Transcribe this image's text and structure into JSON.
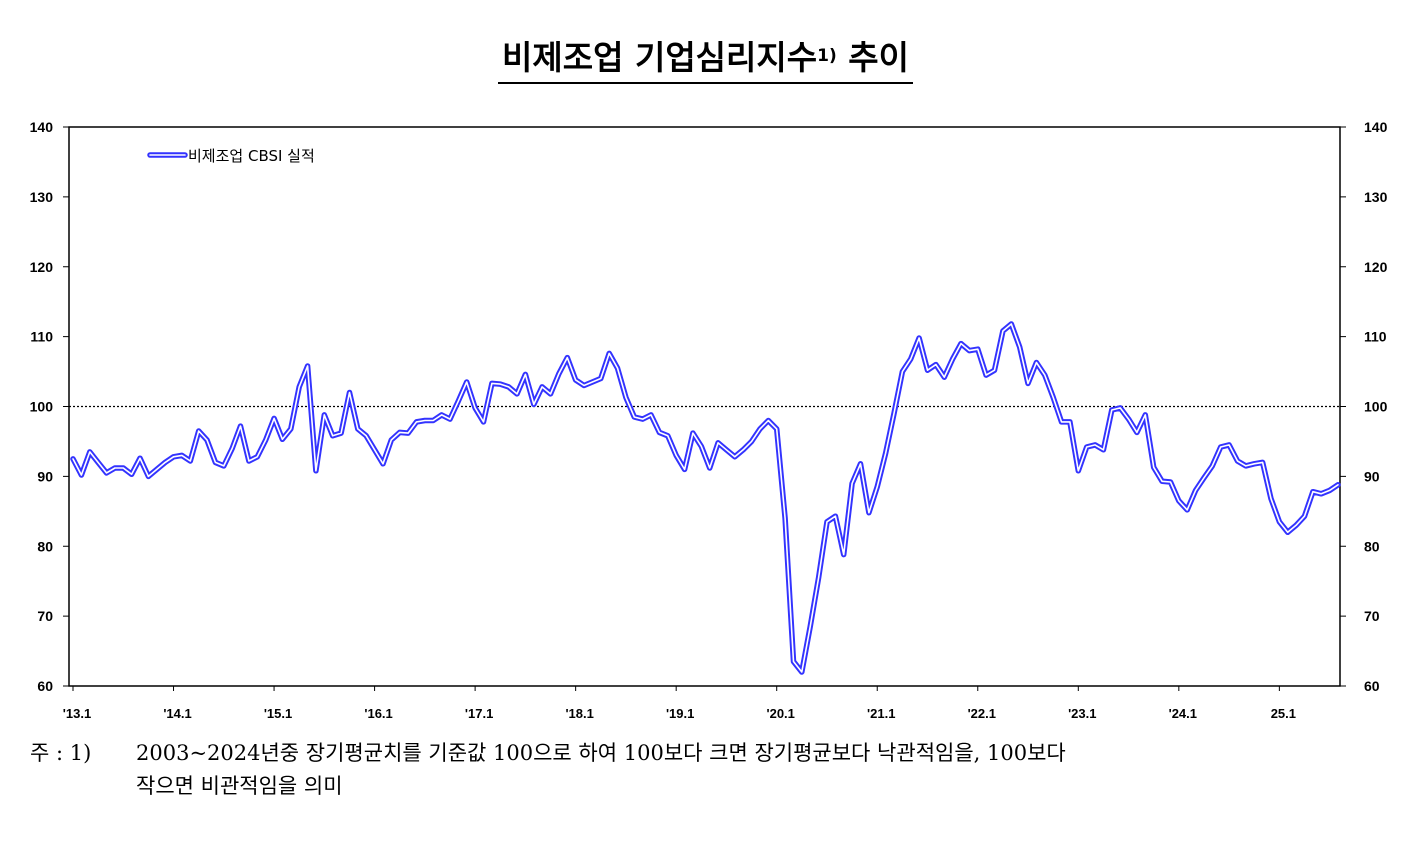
{
  "title": {
    "main": "비제조업 기업심리지수",
    "superscript": "1)",
    "suffix": "추이"
  },
  "note": {
    "lead": "주 : 1)",
    "line1": "2003~2024년중 장기평균치를 기준값 100으로 하여 100보다 크면 장기평균보다 낙관적임을, 100보다",
    "line2": "작으면 비관적임을 의미"
  },
  "chart_data": {
    "type": "line",
    "title": "비제조업 기업심리지수 추이",
    "ylim": [
      60,
      140
    ],
    "yticks": [
      60,
      70,
      80,
      90,
      100,
      110,
      120,
      130,
      140
    ],
    "secondary_yaxis": true,
    "reference_line": {
      "value": 100,
      "style": "dotted"
    },
    "x_start": "2013-01",
    "x_end": "2025-08",
    "x_ticks": [
      {
        "x": "2013-01",
        "label": "'13.1"
      },
      {
        "x": "2014-01",
        "label": "'14.1"
      },
      {
        "x": "2015-01",
        "label": "'15.1"
      },
      {
        "x": "2016-01",
        "label": "'16.1"
      },
      {
        "x": "2017-01",
        "label": "'17.1"
      },
      {
        "x": "2018-01",
        "label": "'18.1"
      },
      {
        "x": "2019-01",
        "label": "'19.1"
      },
      {
        "x": "2020-01",
        "label": "'20.1"
      },
      {
        "x": "2021-01",
        "label": "'21.1"
      },
      {
        "x": "2022-01",
        "label": "'22.1"
      },
      {
        "x": "2023-01",
        "label": "'23.1"
      },
      {
        "x": "2024-01",
        "label": "'24.1"
      },
      {
        "x": "2025-01",
        "label": "25.1"
      }
    ],
    "legend_position": "top-left",
    "series": [
      {
        "name": "비제조업 CBSI 실적",
        "color": "#3333ff",
        "values": [
          {
            "x": "2013-01",
            "y": 92.5
          },
          {
            "x": "2013-02",
            "y": 90.2
          },
          {
            "x": "2013-03",
            "y": 93.5
          },
          {
            "x": "2013-04",
            "y": 92.0
          },
          {
            "x": "2013-05",
            "y": 90.5
          },
          {
            "x": "2013-06",
            "y": 91.2
          },
          {
            "x": "2013-07",
            "y": 91.2
          },
          {
            "x": "2013-08",
            "y": 90.3
          },
          {
            "x": "2013-09",
            "y": 92.6
          },
          {
            "x": "2013-10",
            "y": 90.0
          },
          {
            "x": "2013-11",
            "y": 91.0
          },
          {
            "x": "2013-12",
            "y": 92.0
          },
          {
            "x": "2014-01",
            "y": 92.8
          },
          {
            "x": "2014-02",
            "y": 93.0
          },
          {
            "x": "2014-03",
            "y": 92.2
          },
          {
            "x": "2014-04",
            "y": 96.5
          },
          {
            "x": "2014-05",
            "y": 95.2
          },
          {
            "x": "2014-06",
            "y": 92.0
          },
          {
            "x": "2014-07",
            "y": 91.5
          },
          {
            "x": "2014-08",
            "y": 94.0
          },
          {
            "x": "2014-09",
            "y": 97.2
          },
          {
            "x": "2014-10",
            "y": 92.2
          },
          {
            "x": "2014-11",
            "y": 92.8
          },
          {
            "x": "2014-12",
            "y": 95.2
          },
          {
            "x": "2015-01",
            "y": 98.3
          },
          {
            "x": "2015-02",
            "y": 95.3
          },
          {
            "x": "2015-03",
            "y": 96.8
          },
          {
            "x": "2015-04",
            "y": 102.8
          },
          {
            "x": "2015-05",
            "y": 105.8
          },
          {
            "x": "2015-06",
            "y": 90.8
          },
          {
            "x": "2015-07",
            "y": 98.8
          },
          {
            "x": "2015-08",
            "y": 95.8
          },
          {
            "x": "2015-09",
            "y": 96.2
          },
          {
            "x": "2015-10",
            "y": 102.0
          },
          {
            "x": "2015-11",
            "y": 96.8
          },
          {
            "x": "2015-12",
            "y": 95.8
          },
          {
            "x": "2016-01",
            "y": 93.8
          },
          {
            "x": "2016-02",
            "y": 91.8
          },
          {
            "x": "2016-03",
            "y": 95.2
          },
          {
            "x": "2016-04",
            "y": 96.3
          },
          {
            "x": "2016-05",
            "y": 96.2
          },
          {
            "x": "2016-06",
            "y": 97.8
          },
          {
            "x": "2016-07",
            "y": 98.0
          },
          {
            "x": "2016-08",
            "y": 98.0
          },
          {
            "x": "2016-09",
            "y": 98.8
          },
          {
            "x": "2016-10",
            "y": 98.2
          },
          {
            "x": "2016-11",
            "y": 100.8
          },
          {
            "x": "2016-12",
            "y": 103.5
          },
          {
            "x": "2017-01",
            "y": 99.8
          },
          {
            "x": "2017-02",
            "y": 97.8
          },
          {
            "x": "2017-03",
            "y": 103.3
          },
          {
            "x": "2017-04",
            "y": 103.2
          },
          {
            "x": "2017-05",
            "y": 102.8
          },
          {
            "x": "2017-06",
            "y": 101.8
          },
          {
            "x": "2017-07",
            "y": 104.6
          },
          {
            "x": "2017-08",
            "y": 100.3
          },
          {
            "x": "2017-09",
            "y": 102.8
          },
          {
            "x": "2017-10",
            "y": 101.8
          },
          {
            "x": "2017-11",
            "y": 104.7
          },
          {
            "x": "2017-12",
            "y": 107.0
          },
          {
            "x": "2018-01",
            "y": 103.8
          },
          {
            "x": "2018-02",
            "y": 103.0
          },
          {
            "x": "2018-03",
            "y": 103.5
          },
          {
            "x": "2018-04",
            "y": 104.0
          },
          {
            "x": "2018-05",
            "y": 107.6
          },
          {
            "x": "2018-06",
            "y": 105.5
          },
          {
            "x": "2018-07",
            "y": 101.3
          },
          {
            "x": "2018-08",
            "y": 98.5
          },
          {
            "x": "2018-09",
            "y": 98.2
          },
          {
            "x": "2018-10",
            "y": 98.8
          },
          {
            "x": "2018-11",
            "y": 96.3
          },
          {
            "x": "2018-12",
            "y": 95.8
          },
          {
            "x": "2019-01",
            "y": 93.0
          },
          {
            "x": "2019-02",
            "y": 91.0
          },
          {
            "x": "2019-03",
            "y": 96.2
          },
          {
            "x": "2019-04",
            "y": 94.3
          },
          {
            "x": "2019-05",
            "y": 91.2
          },
          {
            "x": "2019-06",
            "y": 94.8
          },
          {
            "x": "2019-07",
            "y": 93.8
          },
          {
            "x": "2019-08",
            "y": 92.8
          },
          {
            "x": "2019-09",
            "y": 93.8
          },
          {
            "x": "2019-10",
            "y": 95.0
          },
          {
            "x": "2019-11",
            "y": 96.8
          },
          {
            "x": "2019-12",
            "y": 98.0
          },
          {
            "x": "2020-01",
            "y": 96.8
          },
          {
            "x": "2020-02",
            "y": 84.0
          },
          {
            "x": "2020-03",
            "y": 63.5
          },
          {
            "x": "2020-04",
            "y": 62.0
          },
          {
            "x": "2020-05",
            "y": 68.5
          },
          {
            "x": "2020-06",
            "y": 75.5
          },
          {
            "x": "2020-07",
            "y": 83.5
          },
          {
            "x": "2020-08",
            "y": 84.3
          },
          {
            "x": "2020-09",
            "y": 78.8
          },
          {
            "x": "2020-10",
            "y": 89.0
          },
          {
            "x": "2020-11",
            "y": 91.8
          },
          {
            "x": "2020-12",
            "y": 84.8
          },
          {
            "x": "2021-01",
            "y": 88.5
          },
          {
            "x": "2021-02",
            "y": 93.3
          },
          {
            "x": "2021-03",
            "y": 99.0
          },
          {
            "x": "2021-04",
            "y": 105.0
          },
          {
            "x": "2021-05",
            "y": 106.8
          },
          {
            "x": "2021-06",
            "y": 109.8
          },
          {
            "x": "2021-07",
            "y": 105.2
          },
          {
            "x": "2021-08",
            "y": 106.0
          },
          {
            "x": "2021-09",
            "y": 104.2
          },
          {
            "x": "2021-10",
            "y": 106.8
          },
          {
            "x": "2021-11",
            "y": 109.0
          },
          {
            "x": "2021-12",
            "y": 108.0
          },
          {
            "x": "2022-01",
            "y": 108.2
          },
          {
            "x": "2022-02",
            "y": 104.5
          },
          {
            "x": "2022-03",
            "y": 105.2
          },
          {
            "x": "2022-04",
            "y": 110.8
          },
          {
            "x": "2022-05",
            "y": 111.8
          },
          {
            "x": "2022-06",
            "y": 108.5
          },
          {
            "x": "2022-07",
            "y": 103.3
          },
          {
            "x": "2022-08",
            "y": 106.3
          },
          {
            "x": "2022-09",
            "y": 104.5
          },
          {
            "x": "2022-10",
            "y": 101.3
          },
          {
            "x": "2022-11",
            "y": 97.8
          },
          {
            "x": "2022-12",
            "y": 97.8
          },
          {
            "x": "2023-01",
            "y": 90.8
          },
          {
            "x": "2023-02",
            "y": 94.2
          },
          {
            "x": "2023-03",
            "y": 94.5
          },
          {
            "x": "2023-04",
            "y": 93.8
          },
          {
            "x": "2023-05",
            "y": 99.5
          },
          {
            "x": "2023-06",
            "y": 99.8
          },
          {
            "x": "2023-07",
            "y": 98.2
          },
          {
            "x": "2023-08",
            "y": 96.3
          },
          {
            "x": "2023-09",
            "y": 98.8
          },
          {
            "x": "2023-10",
            "y": 91.3
          },
          {
            "x": "2023-11",
            "y": 89.3
          },
          {
            "x": "2023-12",
            "y": 89.2
          },
          {
            "x": "2024-01",
            "y": 86.5
          },
          {
            "x": "2024-02",
            "y": 85.2
          },
          {
            "x": "2024-03",
            "y": 88.0
          },
          {
            "x": "2024-04",
            "y": 89.8
          },
          {
            "x": "2024-05",
            "y": 91.5
          },
          {
            "x": "2024-06",
            "y": 94.2
          },
          {
            "x": "2024-07",
            "y": 94.5
          },
          {
            "x": "2024-08",
            "y": 92.2
          },
          {
            "x": "2024-09",
            "y": 91.5
          },
          {
            "x": "2024-10",
            "y": 91.8
          },
          {
            "x": "2024-11",
            "y": 92.0
          },
          {
            "x": "2024-12",
            "y": 86.8
          },
          {
            "x": "2025-01",
            "y": 83.5
          },
          {
            "x": "2025-02",
            "y": 82.0
          },
          {
            "x": "2025-03",
            "y": 83.0
          },
          {
            "x": "2025-04",
            "y": 84.3
          },
          {
            "x": "2025-05",
            "y": 87.8
          },
          {
            "x": "2025-06",
            "y": 87.5
          },
          {
            "x": "2025-07",
            "y": 88.0
          },
          {
            "x": "2025-08",
            "y": 88.8
          }
        ]
      }
    ]
  }
}
